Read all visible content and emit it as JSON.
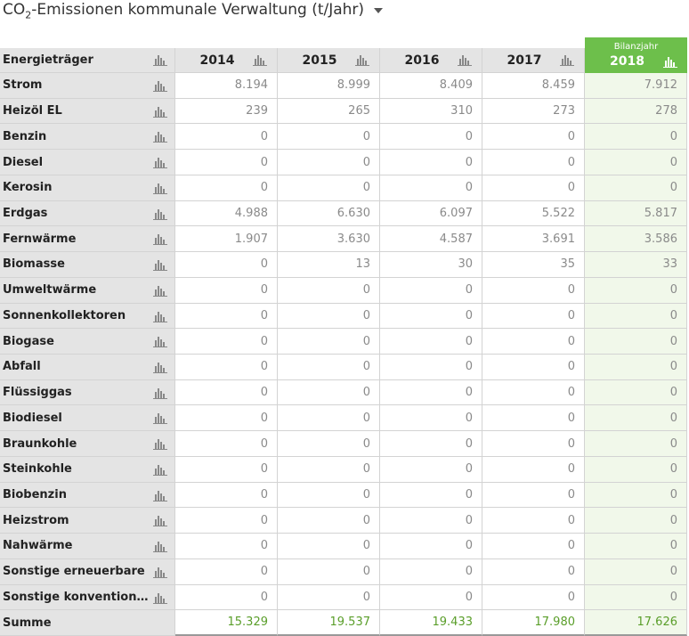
{
  "title": {
    "prefix": "CO",
    "sub": "2",
    "rest": "-Emissionen kommunale Verwaltung (t/Jahr)"
  },
  "table": {
    "header": {
      "label": "Energieträger",
      "years": [
        "2014",
        "2015",
        "2016",
        "2017"
      ],
      "current_caption": "Bilanzjahr",
      "current_year": "2018"
    },
    "rows": [
      {
        "name": "Strom",
        "values": [
          "8.194",
          "8.999",
          "8.409",
          "8.459",
          "7.912"
        ]
      },
      {
        "name": "Heizöl EL",
        "values": [
          "239",
          "265",
          "310",
          "273",
          "278"
        ]
      },
      {
        "name": "Benzin",
        "values": [
          "0",
          "0",
          "0",
          "0",
          "0"
        ]
      },
      {
        "name": "Diesel",
        "values": [
          "0",
          "0",
          "0",
          "0",
          "0"
        ]
      },
      {
        "name": "Kerosin",
        "values": [
          "0",
          "0",
          "0",
          "0",
          "0"
        ]
      },
      {
        "name": "Erdgas",
        "values": [
          "4.988",
          "6.630",
          "6.097",
          "5.522",
          "5.817"
        ]
      },
      {
        "name": "Fernwärme",
        "values": [
          "1.907",
          "3.630",
          "4.587",
          "3.691",
          "3.586"
        ]
      },
      {
        "name": "Biomasse",
        "values": [
          "0",
          "13",
          "30",
          "35",
          "33"
        ]
      },
      {
        "name": "Umweltwärme",
        "values": [
          "0",
          "0",
          "0",
          "0",
          "0"
        ]
      },
      {
        "name": "Sonnenkollektoren",
        "values": [
          "0",
          "0",
          "0",
          "0",
          "0"
        ]
      },
      {
        "name": "Biogase",
        "values": [
          "0",
          "0",
          "0",
          "0",
          "0"
        ]
      },
      {
        "name": "Abfall",
        "values": [
          "0",
          "0",
          "0",
          "0",
          "0"
        ]
      },
      {
        "name": "Flüssiggas",
        "values": [
          "0",
          "0",
          "0",
          "0",
          "0"
        ]
      },
      {
        "name": "Biodiesel",
        "values": [
          "0",
          "0",
          "0",
          "0",
          "0"
        ]
      },
      {
        "name": "Braunkohle",
        "values": [
          "0",
          "0",
          "0",
          "0",
          "0"
        ]
      },
      {
        "name": "Steinkohle",
        "values": [
          "0",
          "0",
          "0",
          "0",
          "0"
        ]
      },
      {
        "name": "Biobenzin",
        "values": [
          "0",
          "0",
          "0",
          "0",
          "0"
        ]
      },
      {
        "name": "Heizstrom",
        "values": [
          "0",
          "0",
          "0",
          "0",
          "0"
        ]
      },
      {
        "name": "Nahwärme",
        "values": [
          "0",
          "0",
          "0",
          "0",
          "0"
        ]
      },
      {
        "name": "Sonstige erneuerbare",
        "values": [
          "0",
          "0",
          "0",
          "0",
          "0"
        ]
      },
      {
        "name": "Sonstige konvention…",
        "values": [
          "0",
          "0",
          "0",
          "0",
          "0"
        ]
      }
    ],
    "total": {
      "name": "Summe",
      "values": [
        "15.329",
        "19.537",
        "19.433",
        "17.980",
        "17.626"
      ]
    }
  }
}
